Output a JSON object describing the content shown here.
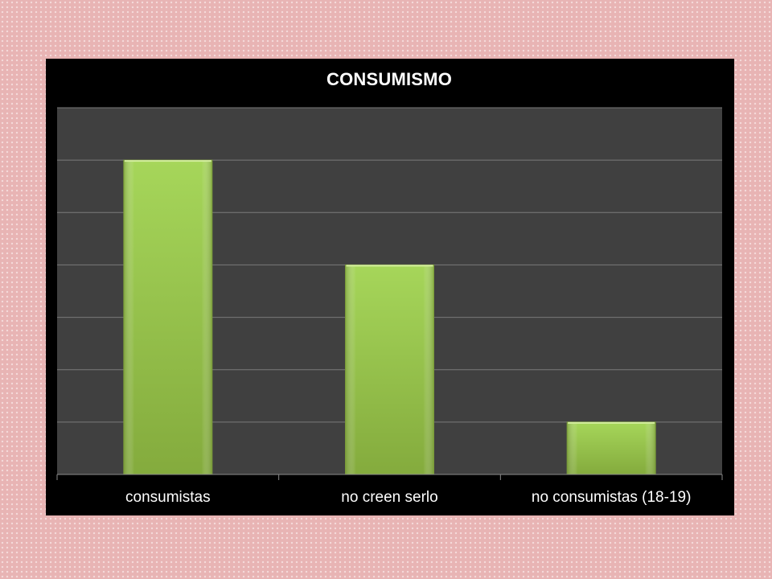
{
  "chart_data": {
    "type": "bar",
    "title": "CONSUMISMO",
    "categories": [
      "consumistas",
      "no creen serlo",
      "no consumistas (18-19)"
    ],
    "values": [
      6,
      4,
      1
    ],
    "ylim": [
      0,
      7
    ],
    "grid": true,
    "xlabel": "",
    "ylabel": "",
    "bar_color": "#9bcd4a",
    "plot_background": "#404040",
    "panel_background": "#000000",
    "grid_color": "#7a7a7a",
    "text_color": "#ffffff"
  }
}
